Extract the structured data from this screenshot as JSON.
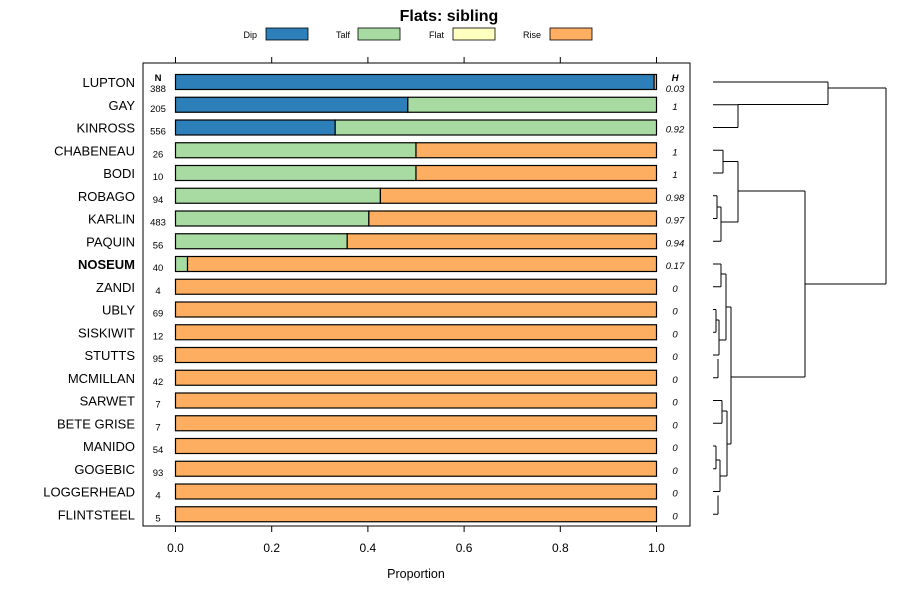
{
  "chart_data": {
    "type": "bar",
    "stacked": true,
    "orientation": "horizontal",
    "title": "Flats: sibling",
    "xlabel": "Proportion",
    "xlim": [
      0,
      1
    ],
    "xticks": [
      "0.0",
      "0.2",
      "0.4",
      "0.6",
      "0.8",
      "1.0"
    ],
    "n_header": "N",
    "h_header": "H",
    "legend": [
      {
        "name": "Dip",
        "color": "#2c7fb8"
      },
      {
        "name": "Talf",
        "color": "#a8dba2"
      },
      {
        "name": "Flat",
        "color": "#ffffbf"
      },
      {
        "name": "Rise",
        "color": "#fdae61"
      }
    ],
    "categories": [
      "LUPTON",
      "GAY",
      "KINROSS",
      "CHABENEAU",
      "BODI",
      "ROBAGO",
      "KARLIN",
      "PAQUIN",
      "NOSEUM",
      "ZANDI",
      "UBLY",
      "SISKIWIT",
      "STUTTS",
      "MCMILLAN",
      "SARWET",
      "BETE GRISE",
      "MANIDO",
      "GOGEBIC",
      "LOGGERHEAD",
      "FLINTSTEEL"
    ],
    "highlight": "NOSEUM",
    "n": [
      "388",
      "205",
      "556",
      "26",
      "10",
      "94",
      "483",
      "56",
      "40",
      "4",
      "69",
      "12",
      "95",
      "42",
      "7",
      "7",
      "54",
      "93",
      "4",
      "5"
    ],
    "h": [
      "0.03",
      "1",
      "0.92",
      "1",
      "1",
      "0.98",
      "0.97",
      "0.94",
      "0.17",
      "0",
      "0",
      "0",
      "0",
      "0",
      "0",
      "0",
      "0",
      "0",
      "0",
      "0"
    ],
    "series": [
      {
        "name": "Dip",
        "values": [
          0.995,
          0.483,
          0.332,
          0,
          0,
          0,
          0,
          0,
          0,
          0,
          0,
          0,
          0,
          0,
          0,
          0,
          0,
          0,
          0,
          0
        ]
      },
      {
        "name": "Talf",
        "values": [
          0,
          0.517,
          0.668,
          0.5,
          0.5,
          0.426,
          0.402,
          0.357,
          0.025,
          0,
          0,
          0,
          0,
          0,
          0,
          0,
          0,
          0,
          0,
          0
        ]
      },
      {
        "name": "Flat",
        "values": [
          0,
          0,
          0,
          0,
          0,
          0,
          0,
          0,
          0,
          0,
          0,
          0,
          0,
          0,
          0,
          0,
          0,
          0,
          0,
          0
        ]
      },
      {
        "name": "Rise",
        "values": [
          0.005,
          0,
          0,
          0.5,
          0.5,
          0.574,
          0.598,
          0.643,
          0.975,
          1,
          1,
          1,
          1,
          1,
          1,
          1,
          1,
          1,
          1,
          1
        ]
      }
    ],
    "dendrogram": true
  }
}
